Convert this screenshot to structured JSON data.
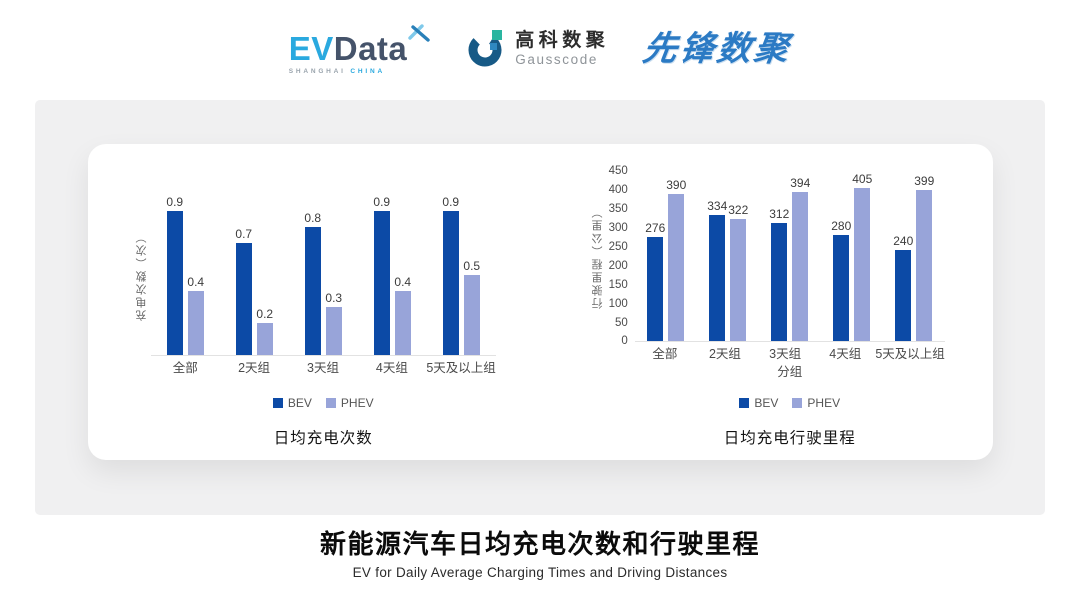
{
  "header": {
    "evdata": {
      "ev": "EV",
      "data": "Data",
      "sub_left": "SHANGHAI",
      "sub_right": "CHINA"
    },
    "gausscode": {
      "cn": "高科数聚",
      "en": "Gausscode"
    },
    "pioneer": {
      "text": "先锋数聚"
    }
  },
  "colors": {
    "bev": "#0C4AA6",
    "phev": "#98A4D9",
    "axis_line": "#E2E2E2",
    "panel_bg": "#F0F0F1",
    "logo_sky_blue": "#2AA9DF",
    "logo_slate": "#45536A",
    "logo_pioneer_blue": "#2B7AC4"
  },
  "chart_data": [
    {
      "type": "bar",
      "title": "日均充电次数",
      "ylabel": "充电次数（次）",
      "xlabel": "",
      "categories": [
        "全部",
        "2天组",
        "3天组",
        "4天组",
        "5天及以上组"
      ],
      "series": [
        {
          "name": "BEV",
          "values": [
            0.9,
            0.7,
            0.8,
            0.9,
            0.9
          ]
        },
        {
          "name": "PHEV",
          "values": [
            0.4,
            0.2,
            0.3,
            0.4,
            0.5
          ]
        }
      ],
      "ylim": [
        0,
        1.0
      ],
      "grid": false,
      "legend_position": "bottom",
      "value_labels": true
    },
    {
      "type": "bar",
      "title": "日均充电行驶里程",
      "ylabel": "行驶里程（公里）",
      "xlabel": "分组",
      "categories": [
        "全部",
        "2天组",
        "3天组",
        "4天组",
        "5天及以上组"
      ],
      "series": [
        {
          "name": "BEV",
          "values": [
            276,
            334,
            312,
            280,
            240
          ]
        },
        {
          "name": "PHEV",
          "values": [
            390,
            322,
            394,
            405,
            399
          ]
        }
      ],
      "ylim": [
        0,
        450
      ],
      "yticks": [
        450,
        400,
        350,
        300,
        250,
        200,
        150,
        100,
        50,
        0
      ],
      "grid": false,
      "legend_position": "bottom",
      "value_labels": true
    }
  ],
  "footer": {
    "title": "新能源汽车日均充电次数和行驶里程",
    "subtitle": "EV for Daily Average Charging Times and Driving Distances"
  }
}
